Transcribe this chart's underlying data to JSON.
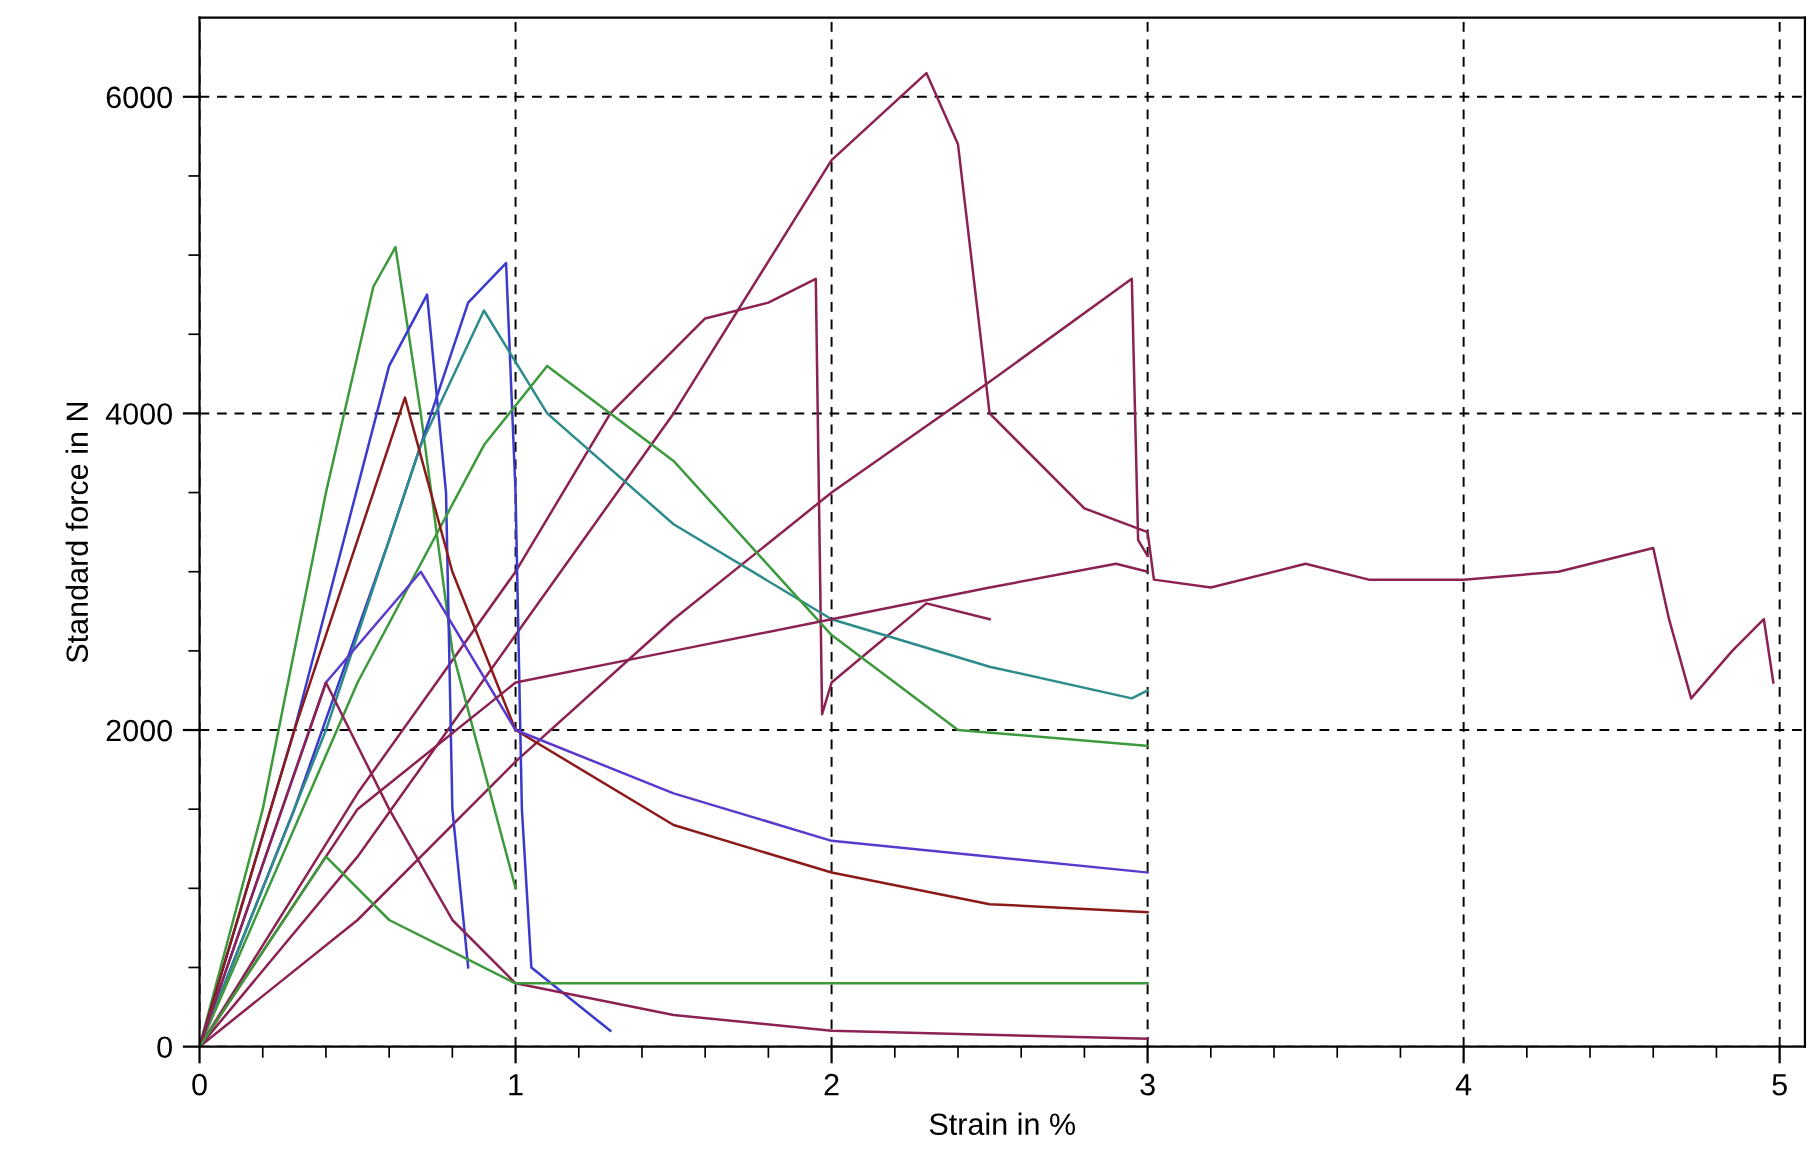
{
  "chart_data": {
    "type": "line",
    "xlabel": "Strain in %",
    "ylabel": "Standard force in N",
    "xlim": [
      0,
      5.08
    ],
    "ylim": [
      0,
      6500
    ],
    "xticks": [
      0,
      {
        "value": 0.2,
        "label": null
      },
      {
        "value": 0.4,
        "label": null
      },
      {
        "value": 0.6,
        "label": null
      },
      {
        "value": 0.8,
        "label": null
      },
      1,
      {
        "value": 1.2,
        "label": null
      },
      {
        "value": 1.4,
        "label": null
      },
      {
        "value": 1.6,
        "label": null
      },
      {
        "value": 1.8,
        "label": null
      },
      2,
      {
        "value": 2.2,
        "label": null
      },
      {
        "value": 2.4,
        "label": null
      },
      {
        "value": 2.6,
        "label": null
      },
      {
        "value": 2.8,
        "label": null
      },
      3,
      {
        "value": 3.2,
        "label": null
      },
      {
        "value": 3.4,
        "label": null
      },
      {
        "value": 3.6,
        "label": null
      },
      {
        "value": 3.8,
        "label": null
      },
      4,
      {
        "value": 4.2,
        "label": null
      },
      {
        "value": 4.4,
        "label": null
      },
      {
        "value": 4.6,
        "label": null
      },
      {
        "value": 4.8,
        "label": null
      },
      5
    ],
    "yticks": [
      0,
      {
        "value": 500,
        "label": null
      },
      {
        "value": 1000,
        "label": null
      },
      {
        "value": 1500,
        "label": null
      },
      2000,
      {
        "value": 2500,
        "label": null
      },
      {
        "value": 3000,
        "label": null
      },
      {
        "value": 3500,
        "label": null
      },
      4000,
      {
        "value": 4500,
        "label": null
      },
      {
        "value": 5000,
        "label": null
      },
      {
        "value": 5500,
        "label": null
      },
      6000
    ],
    "grid": true,
    "legend": false,
    "marker": "none",
    "line_style": "solid",
    "series": [
      {
        "color": "#8b2252",
        "x": [
          0,
          0.5,
          1,
          1.5,
          2,
          2.3,
          2.4,
          2.5,
          2.8,
          3,
          3.02,
          3.2,
          3.5,
          3.7,
          4,
          4.3,
          4.6,
          4.65,
          4.72,
          4.85,
          4.95,
          4.98
        ],
        "values": [
          0,
          1200,
          2600,
          4000,
          5600,
          6150,
          5700,
          4000,
          3400,
          3250,
          2950,
          2900,
          3050,
          2950,
          2950,
          3000,
          3150,
          2700,
          2200,
          2500,
          2700,
          2300
        ]
      },
      {
        "color": "#8b2252",
        "x": [
          0,
          0.5,
          1,
          1.5,
          2,
          2.5,
          2.95,
          2.97,
          3
        ],
        "values": [
          0,
          800,
          1800,
          2700,
          3500,
          4200,
          4850,
          3200,
          3100
        ]
      },
      {
        "color": "#8b2252",
        "x": [
          0,
          0.5,
          1,
          1.3,
          1.6,
          1.8,
          1.95,
          1.97,
          2,
          2.3,
          2.5
        ],
        "values": [
          0,
          1600,
          3000,
          4000,
          4600,
          4700,
          4850,
          2100,
          2300,
          2800,
          2700
        ]
      },
      {
        "color": "#3c9a3c",
        "x": [
          0,
          0.2,
          0.4,
          0.55,
          0.62,
          0.7,
          0.8,
          1
        ],
        "values": [
          0,
          1500,
          3500,
          4800,
          5050,
          4000,
          2500,
          1000
        ]
      },
      {
        "color": "#3a3acc",
        "x": [
          0,
          0.3,
          0.6,
          0.85,
          0.97,
          1.0,
          1.02,
          1.05,
          1.3
        ],
        "values": [
          0,
          1500,
          3200,
          4700,
          4950,
          3500,
          1500,
          500,
          100
        ]
      },
      {
        "color": "#3a3acc",
        "x": [
          0,
          0.3,
          0.6,
          0.72,
          0.78,
          0.8,
          0.85
        ],
        "values": [
          0,
          2000,
          4300,
          4750,
          3500,
          1500,
          500
        ]
      },
      {
        "color": "#2e8b8b",
        "x": [
          0,
          0.4,
          0.7,
          0.9,
          1.1,
          1.5,
          2,
          2.5,
          2.95,
          3
        ],
        "values": [
          0,
          2000,
          3800,
          4650,
          4000,
          3300,
          2700,
          2400,
          2200,
          2250
        ]
      },
      {
        "color": "#3c9a3c",
        "x": [
          0,
          0.5,
          0.9,
          1.1,
          1.5,
          2,
          2.4,
          3
        ],
        "values": [
          0,
          2300,
          3800,
          4300,
          3700,
          2600,
          2000,
          1900
        ]
      },
      {
        "color": "#8b1a1a",
        "x": [
          0,
          0.3,
          0.65,
          0.8,
          1,
          1.5,
          2,
          2.5,
          3
        ],
        "values": [
          0,
          2000,
          4100,
          3000,
          2000,
          1400,
          1100,
          900,
          850
        ]
      },
      {
        "color": "#5a3acc",
        "x": [
          0,
          0.4,
          0.7,
          1,
          1.5,
          2,
          3
        ],
        "values": [
          0,
          2300,
          3000,
          2000,
          1600,
          1300,
          1100
        ]
      },
      {
        "color": "#8b2252",
        "x": [
          0,
          0.4,
          0.6,
          0.8,
          1,
          1.5,
          2,
          3
        ],
        "values": [
          0,
          2300,
          1500,
          800,
          400,
          200,
          100,
          50
        ]
      },
      {
        "color": "#8b2252",
        "x": [
          0,
          0.5,
          1,
          1.5,
          2,
          2.5,
          2.9,
          3
        ],
        "values": [
          0,
          1500,
          2300,
          2500,
          2700,
          2900,
          3050,
          3000
        ]
      },
      {
        "color": "#3c9a3c",
        "x": [
          0,
          0.4,
          0.6,
          0.8,
          1,
          2,
          3
        ],
        "values": [
          0,
          1200,
          800,
          600,
          400,
          400,
          400
        ]
      }
    ]
  }
}
